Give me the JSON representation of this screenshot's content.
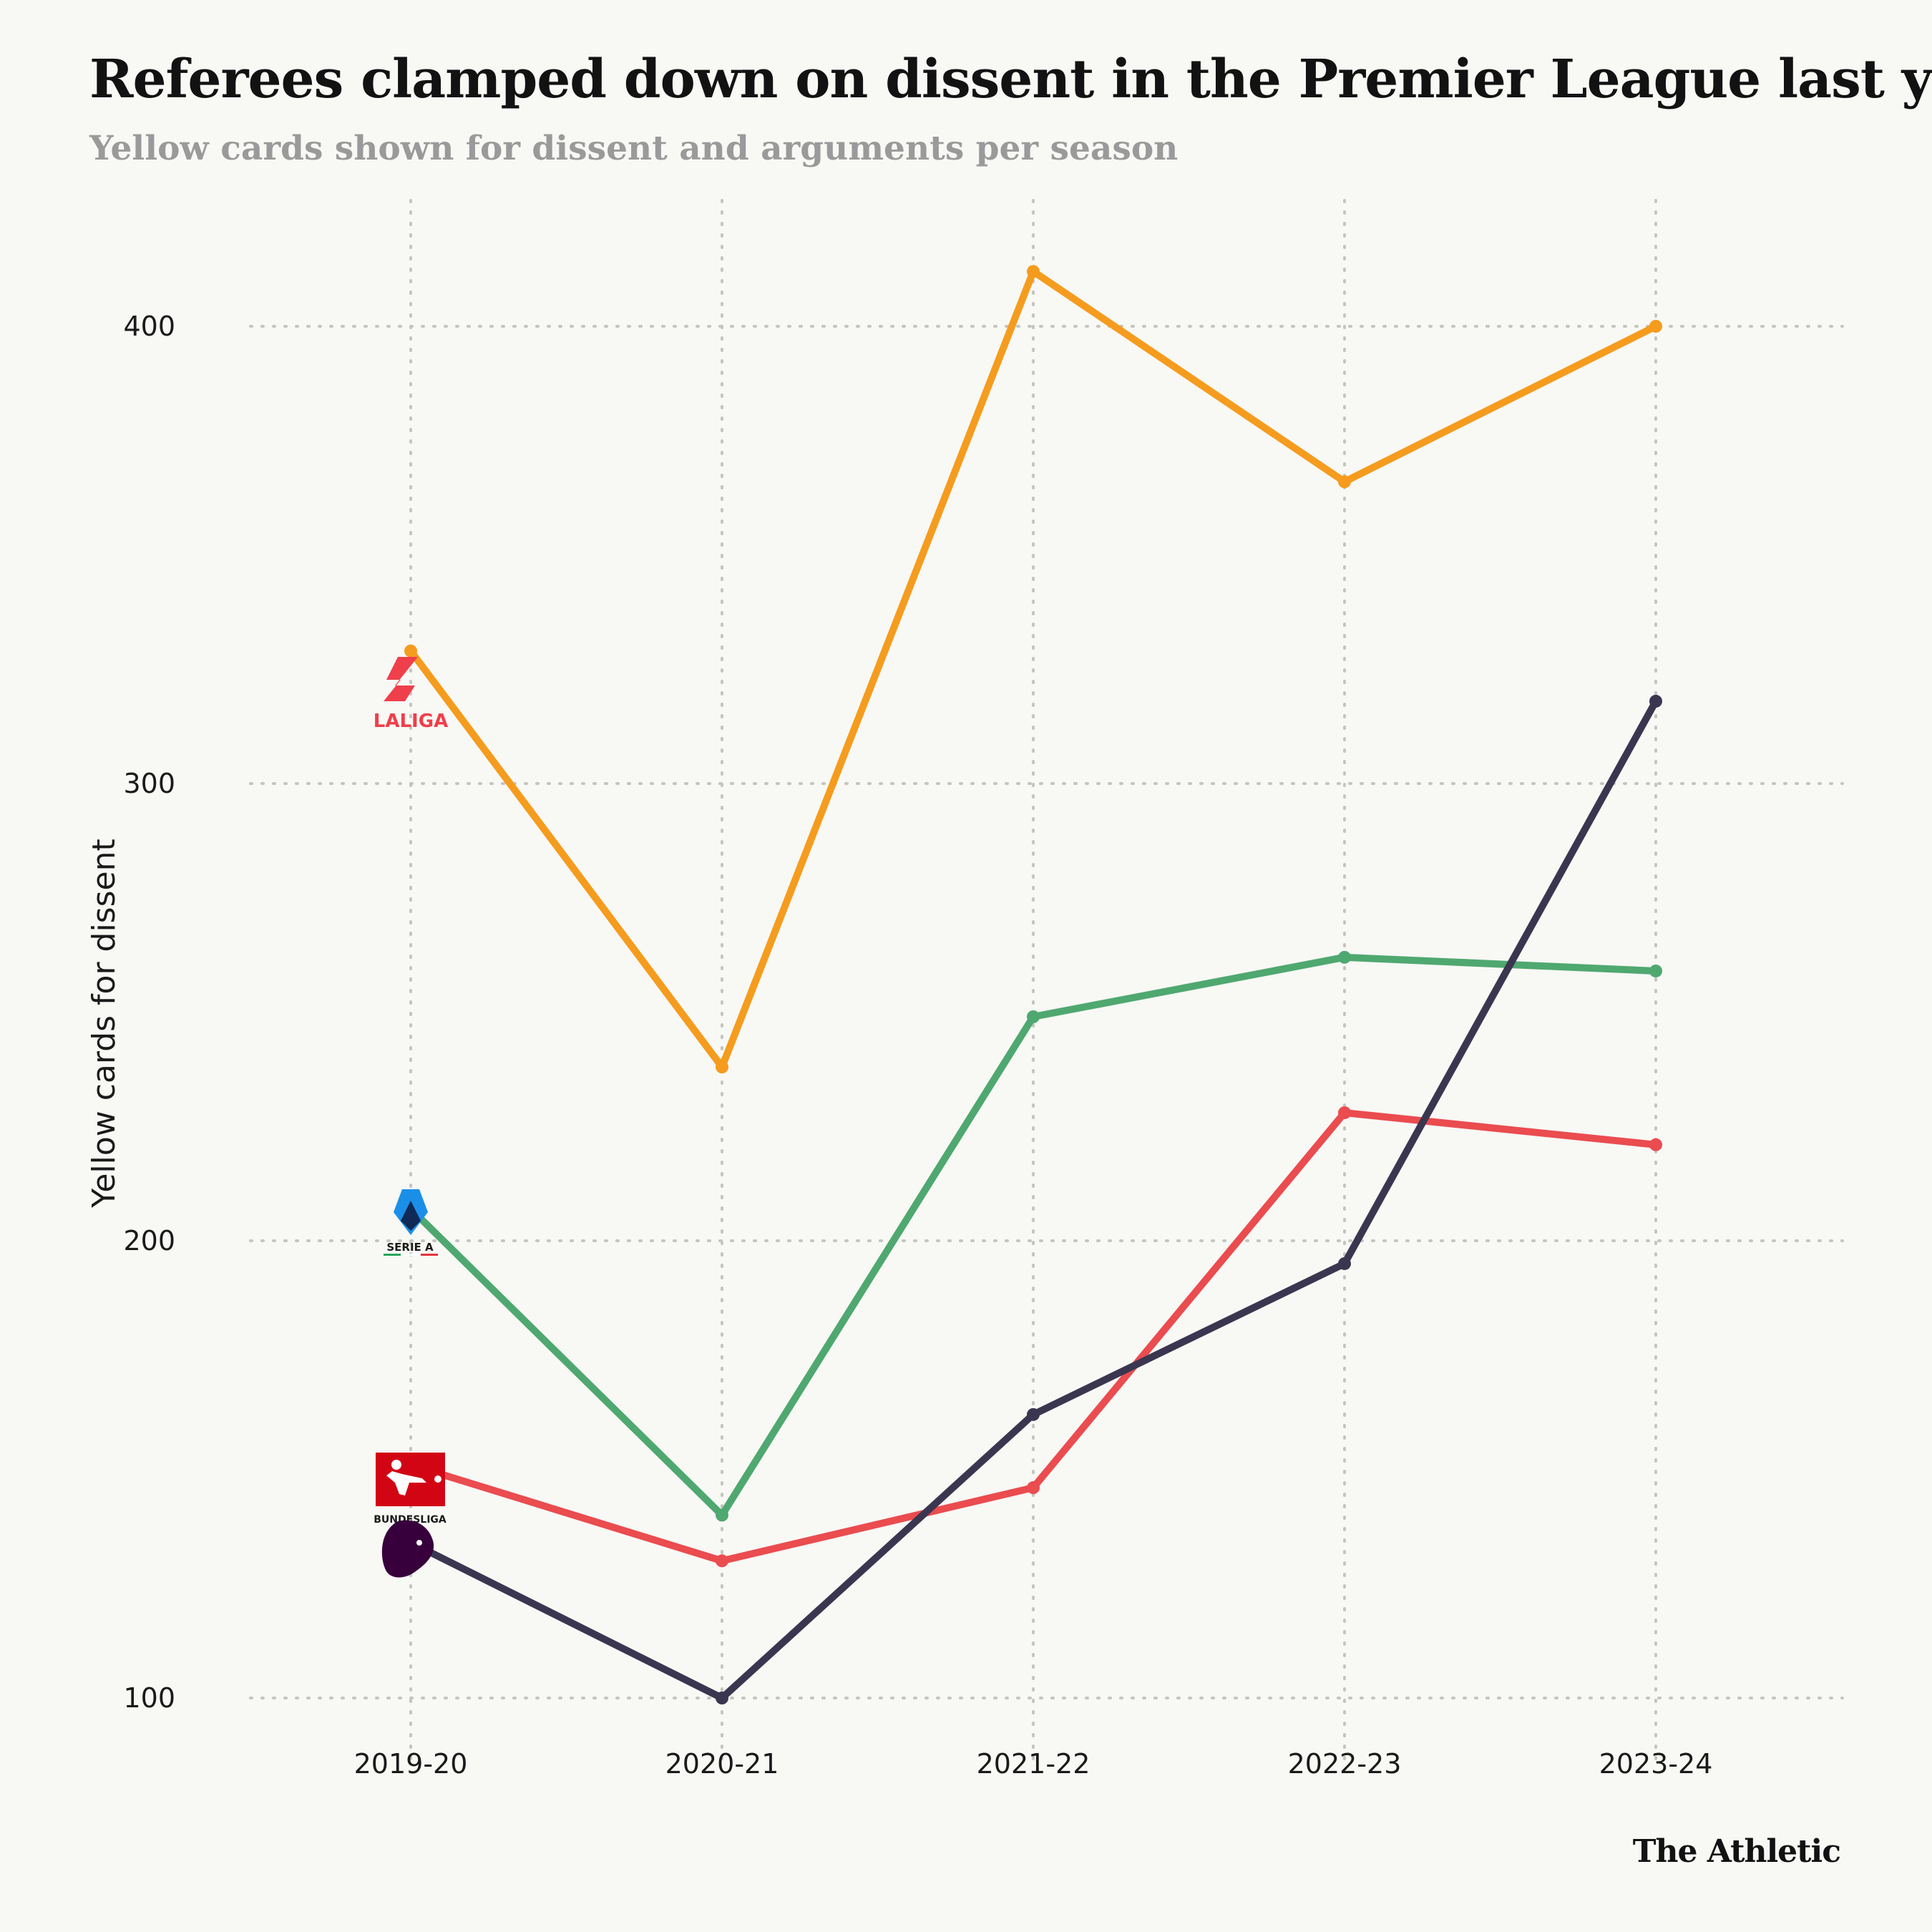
{
  "title": "Referees clamped down on dissent in the Premier League last year",
  "subtitle": "Yellow cards shown for dissent and arguments per season",
  "source": "The Athletic",
  "chart_data": {
    "type": "line",
    "ylabel": "Yellow cards for dissent",
    "xlabel": "",
    "ylim": [
      85,
      425
    ],
    "yticks": [
      100,
      200,
      300,
      400
    ],
    "categories": [
      "2019-20",
      "2020-21",
      "2021-22",
      "2022-23",
      "2023-24"
    ],
    "grid": true,
    "legend": "logos at first point",
    "series": [
      {
        "name": "LALIGA",
        "color": "#f59c1e",
        "values": [
          329,
          238,
          412,
          366,
          400
        ]
      },
      {
        "name": "SERIE A",
        "color": "#4fa870",
        "values": [
          207,
          140,
          249,
          262,
          259
        ]
      },
      {
        "name": "BUNDESLIGA",
        "color": "#ea4c4f",
        "values": [
          151,
          130,
          146,
          228,
          221
        ]
      },
      {
        "name": "",
        "color": "#3b3650",
        "values": [
          134,
          100,
          162,
          195,
          318
        ]
      }
    ]
  }
}
